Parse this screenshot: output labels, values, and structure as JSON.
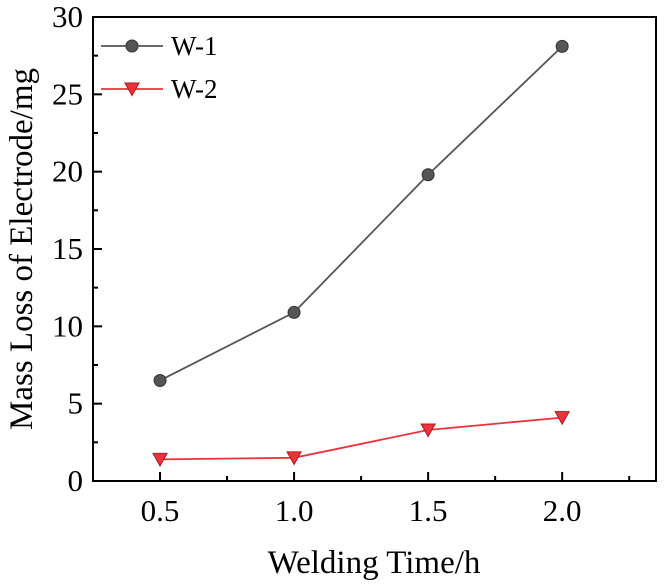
{
  "chart_data": {
    "type": "line",
    "x": [
      0.5,
      1.0,
      1.5,
      2.0
    ],
    "x_tick_labels": [
      "0.5",
      "1.0",
      "1.5",
      "2.0"
    ],
    "y_ticks": [
      0,
      5,
      10,
      15,
      20,
      25,
      30
    ],
    "y_tick_labels": [
      "0",
      "5",
      "10",
      "15",
      "20",
      "25",
      "30"
    ],
    "xlim": [
      0.25,
      2.35
    ],
    "ylim": [
      0,
      30
    ],
    "xlabel": "Welding Time/h",
    "ylabel": "Mass Loss of Electrode/mg",
    "title": "",
    "grid": false,
    "legend_position": "top-left",
    "series": [
      {
        "name": "W-1",
        "values": [
          6.5,
          10.9,
          19.8,
          28.1
        ],
        "color": "#555555",
        "marker": "circle"
      },
      {
        "name": "W-2",
        "values": [
          1.4,
          1.5,
          3.3,
          4.1
        ],
        "color": "#e8343a",
        "marker": "triangle-down"
      }
    ]
  }
}
